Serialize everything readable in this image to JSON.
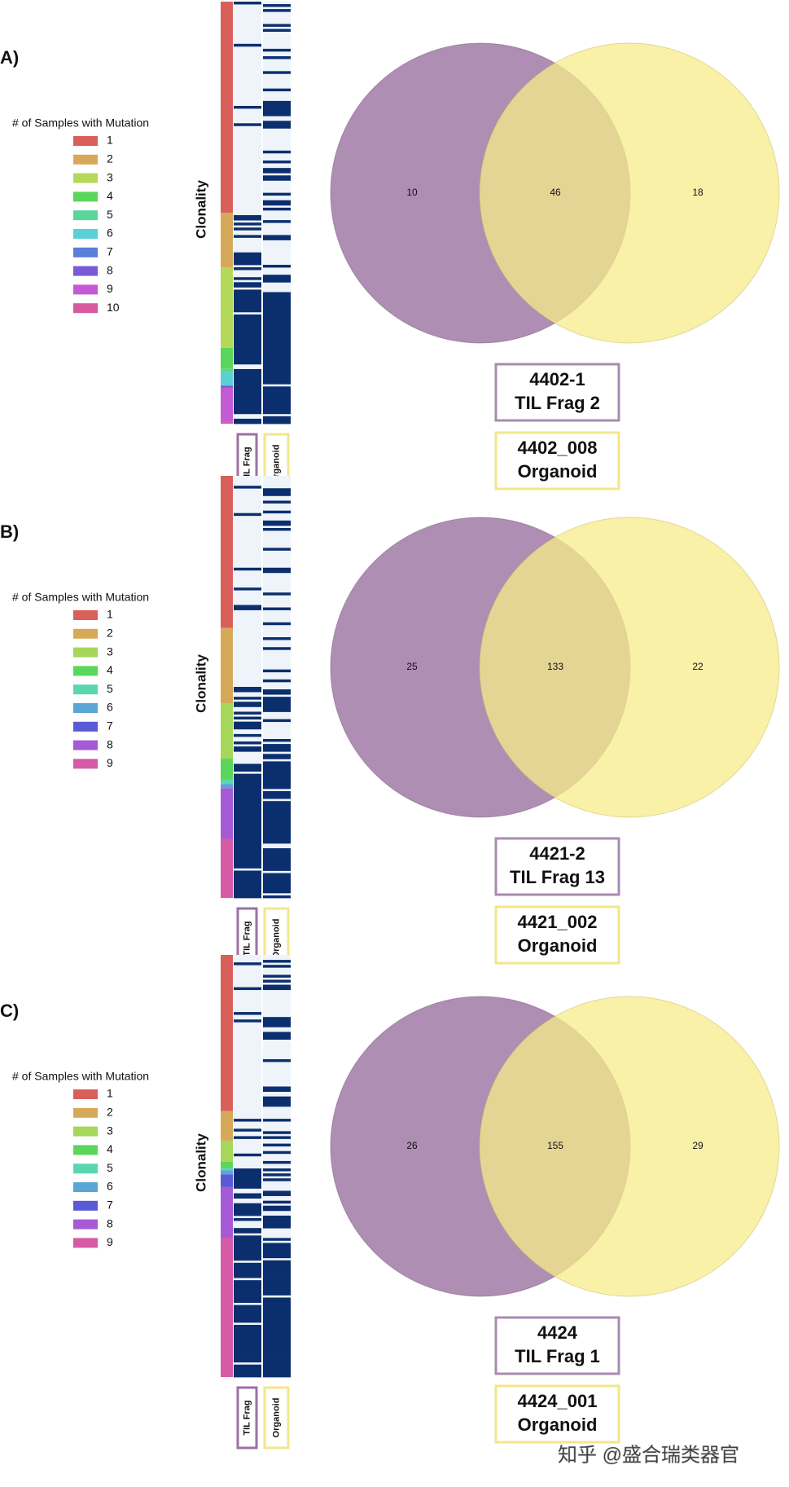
{
  "chart_data": [
    {
      "type": "venn",
      "panel": "A)",
      "legend": {
        "title": "# of Samples with Mutation",
        "labels": [
          "1",
          "2",
          "3",
          "4",
          "5",
          "6",
          "7",
          "8",
          "9",
          "10"
        ],
        "colors": [
          "#d9605a",
          "#d6a95a",
          "#b4d95a",
          "#5ad65a",
          "#5ad69a",
          "#5acfd6",
          "#5a7fd6",
          "#7a5ad6",
          "#c45ad6",
          "#d65aa0"
        ]
      },
      "ylabel": "Clonality",
      "columns": [
        "TIL Frag",
        "Organoid"
      ],
      "sets": [
        {
          "name": [
            "4402-1",
            "TIL Frag 2"
          ],
          "color": "#9b72a0"
        },
        {
          "name": [
            "4402_008",
            "Organoid"
          ],
          "color": "#f7ec8a"
        }
      ],
      "values": [
        10,
        46,
        18
      ]
    },
    {
      "type": "venn",
      "panel": "B)",
      "legend": {
        "title": "# of Samples with Mutation",
        "labels": [
          "1",
          "2",
          "3",
          "4",
          "5",
          "6",
          "7",
          "8",
          "9"
        ],
        "colors": [
          "#d9605a",
          "#d6a95a",
          "#a6d65a",
          "#5ad65a",
          "#5ad6b0",
          "#5aa6d6",
          "#5a5ad6",
          "#a65ad6",
          "#d65aa6"
        ]
      },
      "ylabel": "Clonality",
      "columns": [
        "TIL Frag",
        "Organoid"
      ],
      "sets": [
        {
          "name": [
            "4421-2",
            "TIL Frag 13"
          ],
          "color": "#9b72a0"
        },
        {
          "name": [
            "4421_002",
            "Organoid"
          ],
          "color": "#f7ec8a"
        }
      ],
      "values": [
        25,
        133,
        22
      ]
    },
    {
      "type": "venn",
      "panel": "C)",
      "legend": {
        "title": "# of Samples with Mutation",
        "labels": [
          "1",
          "2",
          "3",
          "4",
          "5",
          "6",
          "7",
          "8",
          "9"
        ],
        "colors": [
          "#d9605a",
          "#d6a95a",
          "#a6d65a",
          "#5ad65a",
          "#5ad6b0",
          "#5aa6d6",
          "#5a5ad6",
          "#a65ad6",
          "#d65aa6"
        ]
      },
      "ylabel": "Clonality",
      "columns": [
        "TIL Frag",
        "Organoid"
      ],
      "sets": [
        {
          "name": [
            "4424",
            "TIL Frag 1"
          ],
          "color": "#9b72a0"
        },
        {
          "name": [
            "4424_001",
            "Organoid"
          ],
          "color": "#f7ec8a"
        }
      ],
      "values": [
        26,
        155,
        29
      ]
    }
  ],
  "watermark": "知乎 @盛合瑞类器官"
}
